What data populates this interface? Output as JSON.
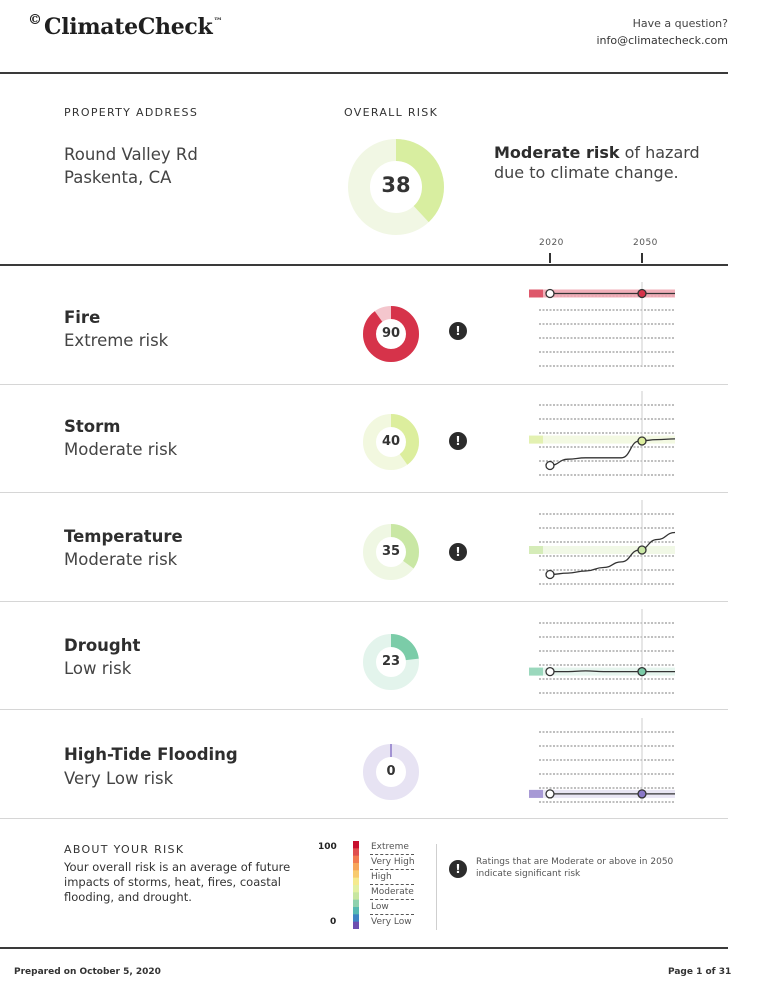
{
  "header": {
    "logo_mark": "©",
    "logo_text": "ClimateCheck",
    "logo_tm": "™",
    "question": "Have a question?",
    "email": "info@climatecheck.com"
  },
  "property": {
    "heading": "PROPERTY ADDRESS",
    "line1": "Round Valley Rd",
    "line2": "Paskenta, CA"
  },
  "overall": {
    "heading": "OVERALL RISK",
    "value": "38",
    "score": 38,
    "summary_bold": "Moderate risk",
    "summary_rest": " of hazard due to climate change."
  },
  "timeline": {
    "start_label": "2020",
    "end_label": "2050"
  },
  "hazards": [
    {
      "name": "Fire",
      "level": "Extreme risk",
      "value": "90",
      "score": 90,
      "color": "#d6334a",
      "light": "#f4c6cd",
      "alert": "!",
      "alerted": true,
      "band_level": 0.95,
      "curve": [
        0.95,
        0.95,
        0.95,
        0.95,
        0.95,
        0.95,
        0.95,
        0.95
      ]
    },
    {
      "name": "Storm",
      "level": "Moderate risk",
      "value": "40",
      "score": 40,
      "color": "#dcee9d",
      "light": "#f2f8df",
      "alert": "!",
      "alerted": true,
      "band_level": 0.42,
      "curve": [
        0.05,
        0.14,
        0.16,
        0.16,
        0.16,
        0.4,
        0.42,
        0.43
      ]
    },
    {
      "name": "Temperature",
      "level": "Moderate risk",
      "value": "35",
      "score": 35,
      "color": "#c9e7a4",
      "light": "#eff7e3",
      "alert": "!",
      "alerted": true,
      "band_level": 0.4,
      "curve": [
        0.05,
        0.07,
        0.1,
        0.15,
        0.23,
        0.4,
        0.55,
        0.65
      ]
    },
    {
      "name": "Drought",
      "level": "Low risk",
      "value": "23",
      "score": 23,
      "color": "#7bcca8",
      "light": "#e3f4ec",
      "alert": "",
      "alerted": false,
      "band_level": 0.22,
      "curve": [
        0.22,
        0.22,
        0.23,
        0.22,
        0.22,
        0.22,
        0.22,
        0.22
      ]
    },
    {
      "name": "High-Tide Flooding",
      "level": "Very Low risk",
      "value": "0",
      "score": 0,
      "color": "#8a78c8",
      "light": "#e7e3f3",
      "alert": "",
      "alerted": false,
      "band_level": 0.03,
      "curve": [
        0.03,
        0.03,
        0.03,
        0.03,
        0.03,
        0.03,
        0.03,
        0.03
      ]
    }
  ],
  "about": {
    "heading": "ABOUT YOUR RISK",
    "text": "Your overall risk is an average of future impacts of storms, heat, fires, coastal flooding, and drought.",
    "scale_max": "100",
    "scale_min": "0",
    "scale_colors": [
      "#c8102e",
      "#e04f4f",
      "#f27b50",
      "#f7a65a",
      "#f8cb6e",
      "#f5ea8e",
      "#e3f0a2",
      "#c7e6a0",
      "#8fd1ae",
      "#56b9b3",
      "#3f84c4",
      "#6d4fb0"
    ],
    "legend": [
      "Extreme",
      "Very High",
      "High",
      "Moderate",
      "Low",
      "Very Low"
    ],
    "alert": "!",
    "note": "Ratings that are Moderate or above in 2050 indicate significant risk"
  },
  "footer": {
    "prepared": "Prepared on October 5, 2020",
    "page": "Page 1 of 31"
  }
}
